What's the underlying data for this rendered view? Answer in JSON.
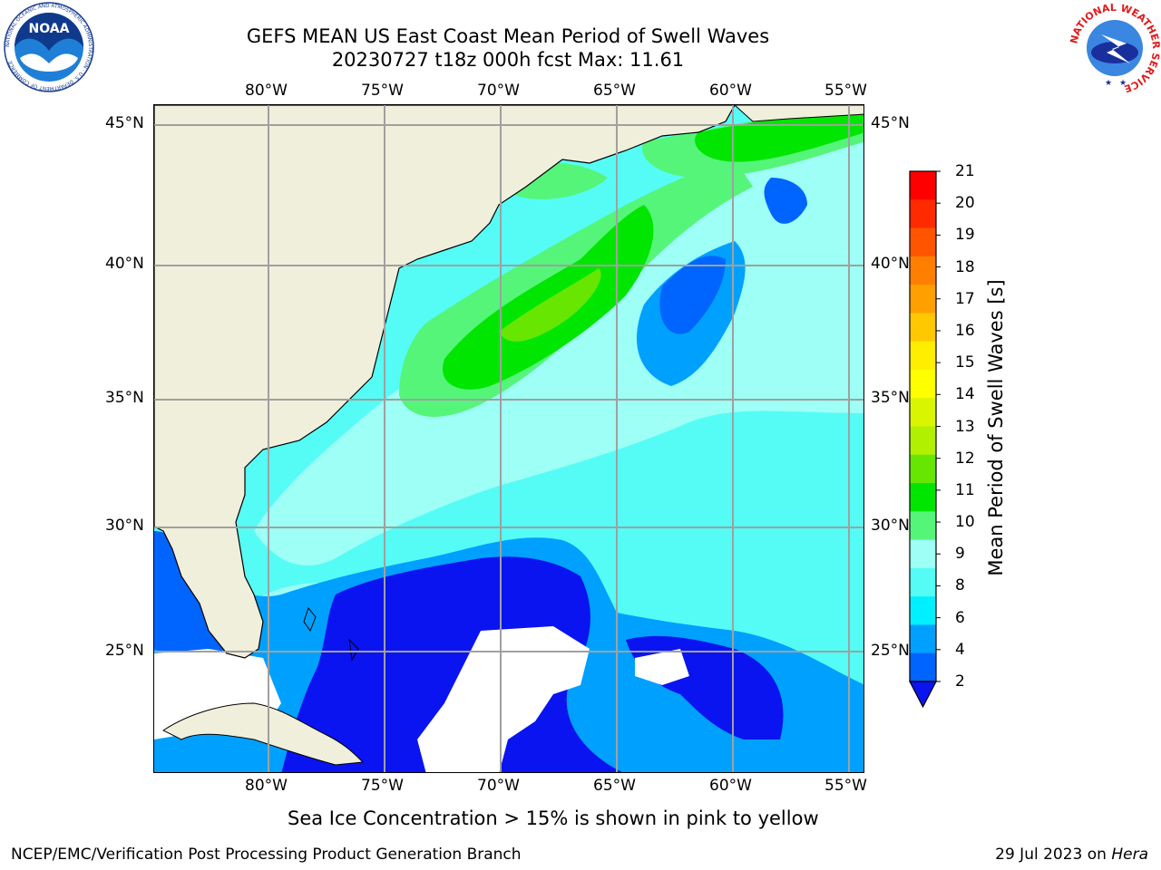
{
  "header": {
    "title_line1": "GEFS MEAN US East Coast Mean Period of Swell Waves",
    "title_line2": "20230727 t18z 000h fcst   Max: 11.61"
  },
  "logos": {
    "left": "NOAA",
    "left_ring_text": "NATIONAL OCEANIC AND ATMOSPHERIC ADMINISTRATION · U.S. DEPARTMENT OF COMMERCE",
    "right_ring_text": "NATIONAL WEATHER SERVICE"
  },
  "map": {
    "lon_labels": [
      "80°W",
      "75°W",
      "70°W",
      "65°W",
      "60°W",
      "55°W"
    ],
    "lat_labels": [
      "45°N",
      "40°N",
      "35°N",
      "30°N",
      "25°N"
    ],
    "land_color": "#efefdc",
    "missing_color": "#ffffff"
  },
  "colorbar": {
    "title": "Mean Period of Swell Waves [s]",
    "labels": [
      "21",
      "20",
      "19",
      "18",
      "17",
      "16",
      "15",
      "14",
      "13",
      "12",
      "11",
      "10",
      "9",
      "8",
      "6",
      "4",
      "2"
    ],
    "colors": [
      "#ff0000",
      "#ff2a00",
      "#ff5500",
      "#ff7f00",
      "#ffa000",
      "#ffc800",
      "#ffee00",
      "#ffff00",
      "#d9f500",
      "#b0f000",
      "#66e600",
      "#00e600",
      "#55f57a",
      "#9dfff5",
      "#55fcf5",
      "#00f0ff",
      "#00a0ff",
      "#0064ff"
    ],
    "under_color": "#0a14f0"
  },
  "footer": {
    "note": "Sea Ice Concentration > 15% is shown in pink to yellow",
    "left": "NCEP/EMC/Verification Post Processing Product Generation Branch",
    "right_date": "29 Jul 2023 on",
    "right_host": "Hera"
  }
}
